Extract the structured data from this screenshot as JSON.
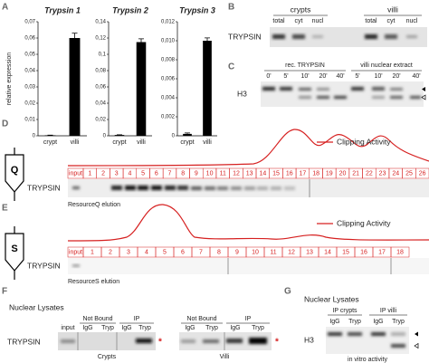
{
  "chart_data": [
    {
      "type": "bar",
      "title": "Trypsin 1",
      "y_label": "relative expression",
      "categories": [
        "crypt",
        "villi"
      ],
      "values": [
        0.0003,
        0.06
      ],
      "errors": [
        0.0001,
        0.003
      ],
      "color": "#000000",
      "ylim": [
        0,
        0.07
      ],
      "yticks": [
        0,
        {
          "value": 0.01,
          "label": "0,01"
        },
        {
          "value": 0.02,
          "label": "0,02"
        },
        {
          "value": 0.03,
          "label": "0,03"
        },
        {
          "value": 0.04,
          "label": "0,04"
        },
        {
          "value": 0.05,
          "label": "0,05"
        },
        {
          "value": 0.06,
          "label": "0,06"
        },
        {
          "value": 0.07,
          "label": "0,07"
        }
      ]
    },
    {
      "type": "bar",
      "title": "Trypsin 2",
      "categories": [
        "crypt",
        "villi"
      ],
      "values": [
        0.001,
        0.115
      ],
      "errors": [
        0.0002,
        0.004
      ],
      "color": "#000000",
      "ylim": [
        0,
        0.14
      ],
      "yticks": [
        0,
        {
          "value": 0.02,
          "label": "0,02"
        },
        {
          "value": 0.04,
          "label": "0,04"
        },
        {
          "value": 0.06,
          "label": "0,06"
        },
        {
          "value": 0.08,
          "label": "0,08"
        },
        {
          "value": 0.1,
          "label": "0,1"
        },
        {
          "value": 0.12,
          "label": "0,12"
        },
        {
          "value": 0.14,
          "label": "0,14"
        }
      ]
    },
    {
      "type": "bar",
      "title": "Trypsin 3",
      "categories": [
        "crypt",
        "villi"
      ],
      "values": [
        0.0002,
        0.01
      ],
      "errors": [
        0.0001,
        0.0003
      ],
      "color": "#000000",
      "ylim": [
        0,
        0.012
      ],
      "yticks": [
        0,
        {
          "value": 0.002,
          "label": "0,002"
        },
        {
          "value": 0.004,
          "label": "0,004"
        },
        {
          "value": 0.006,
          "label": "0,006"
        },
        {
          "value": 0.008,
          "label": "0,008"
        },
        {
          "value": 0.01,
          "label": "0,010"
        },
        {
          "value": 0.012,
          "label": "0,012"
        }
      ]
    }
  ],
  "panel_labels": [
    "A",
    "B",
    "C",
    "D",
    "E",
    "F",
    "G"
  ],
  "panel_b": {
    "groups": [
      "crypts",
      "villi"
    ],
    "lanes": [
      "total",
      "cyt",
      "nucl",
      "total",
      "cyt",
      "nucl"
    ],
    "row_label": "TRYPSIN"
  },
  "panel_c": {
    "groups": [
      "rec. TRYPSIN",
      "villi nuclear extract"
    ],
    "lanes": [
      "0'",
      "5'",
      "10'",
      "20'",
      "40'",
      "5'",
      "10'",
      "20'",
      "40'"
    ],
    "row_label": "H3"
  },
  "panel_d": {
    "legend": "Clipping Activity",
    "icon": "Q",
    "input": "input",
    "fractions": [
      "1",
      "2",
      "3",
      "4",
      "5",
      "6",
      "7",
      "8",
      "9",
      "10",
      "11",
      "12",
      "13",
      "14",
      "15",
      "16",
      "17",
      "18",
      "19",
      "20",
      "21",
      "22",
      "23",
      "24",
      "25",
      "26"
    ],
    "row_label": "TRYPSIN",
    "caption": "ResourceQ elution"
  },
  "panel_e": {
    "legend": "Clipping Activity",
    "icon": "S",
    "input": "input",
    "fractions": [
      "1",
      "2",
      "3",
      "4",
      "5",
      "6",
      "7",
      "8",
      "9",
      "10",
      "11",
      "12",
      "13",
      "14",
      "15",
      "16",
      "17",
      "18"
    ],
    "row_label": "TRYPSIN",
    "caption": "ResourceS elution"
  },
  "panel_f": {
    "title": "Nuclear Lysates",
    "row_label": "TRYPSIN",
    "crypts": {
      "input": "input",
      "not_bound": "Not Bound",
      "ip": "IP",
      "lanes": [
        "IgG",
        "Tryp",
        "IgG",
        "Tryp"
      ],
      "marker": "*",
      "caption": "Crypts"
    },
    "villi": {
      "not_bound": "Not Bound",
      "ip": "IP",
      "lanes": [
        "IgG",
        "Tryp",
        "IgG",
        "Tryp"
      ],
      "marker": "*",
      "caption": "Villi"
    }
  },
  "panel_g": {
    "title": "Nuclear Lysates",
    "groups": [
      "IP crypts",
      "IP villi"
    ],
    "lanes": [
      "IgG",
      "Tryp",
      "IgG",
      "Tryp"
    ],
    "row_label": "H3",
    "caption": "in vitro activity"
  }
}
